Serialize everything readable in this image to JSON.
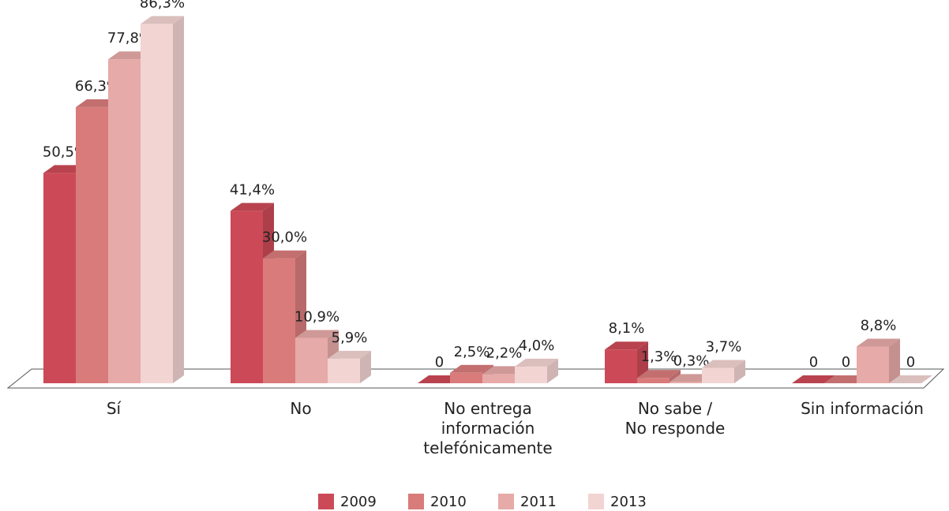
{
  "chart_data": {
    "type": "bar3d",
    "categories": [
      "Sí",
      "No",
      "No entrega\ninformación\ntelefónicamente",
      "No sabe /\nNo responde",
      "Sin información"
    ],
    "series": [
      {
        "name": "2009",
        "color": "#cc4a57",
        "values": [
          50.5,
          41.4,
          0,
          8.1,
          0
        ],
        "value_labels": [
          "50,5%",
          "41,4%",
          "0",
          "8,1%",
          "0"
        ]
      },
      {
        "name": "2010",
        "color": "#d97b7b",
        "values": [
          66.3,
          30.0,
          2.5,
          1.3,
          0
        ],
        "value_labels": [
          "66,3%",
          "30,0%",
          "2,5%",
          "1,3%",
          "0"
        ]
      },
      {
        "name": "2011",
        "color": "#e6aaa8",
        "values": [
          77.8,
          10.9,
          2.2,
          0.3,
          8.8
        ],
        "value_labels": [
          "77,8%",
          "10,9%",
          "2,2%",
          "0,3%",
          "8,8%"
        ]
      },
      {
        "name": "2013",
        "color": "#f2d4d2",
        "values": [
          86.3,
          5.9,
          4.0,
          3.7,
          0
        ],
        "value_labels": [
          "86,3%",
          "5,9%",
          "4,0%",
          "3,7%",
          "0"
        ]
      }
    ]
  }
}
